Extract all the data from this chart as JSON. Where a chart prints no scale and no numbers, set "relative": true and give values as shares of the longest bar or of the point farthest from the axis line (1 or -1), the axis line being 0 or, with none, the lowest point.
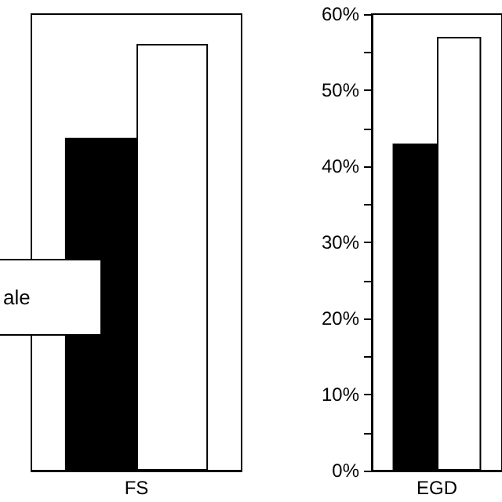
{
  "chart_data": [
    {
      "type": "bar",
      "categories": [
        "FS"
      ],
      "relative": true,
      "grid": false,
      "annotations": [
        "ale"
      ],
      "series": [
        {
          "color": "#000000",
          "values": [
            0.78
          ]
        },
        {
          "color": "#ffffff",
          "values": [
            1
          ]
        }
      ]
    },
    {
      "type": "bar",
      "categories": [
        "EGD"
      ],
      "grid": false,
      "ylim": [
        0,
        60
      ],
      "yticks": [
        {
          "value": 0,
          "label": "0%"
        },
        {
          "value": 5,
          "label": null
        },
        {
          "value": 10,
          "label": "10%"
        },
        {
          "value": 15,
          "label": null
        },
        {
          "value": 20,
          "label": "20%"
        },
        {
          "value": 25,
          "label": null
        },
        {
          "value": 30,
          "label": "30%"
        },
        {
          "value": 35,
          "label": null
        },
        {
          "value": 40,
          "label": "40%"
        },
        {
          "value": 45,
          "label": null
        },
        {
          "value": 50,
          "label": "50%"
        },
        {
          "value": 55,
          "label": null
        },
        {
          "value": 60,
          "label": "60%"
        }
      ],
      "series": [
        {
          "color": "#000000",
          "values": [
            43
          ]
        },
        {
          "color": "#ffffff",
          "values": [
            57
          ]
        }
      ]
    }
  ]
}
